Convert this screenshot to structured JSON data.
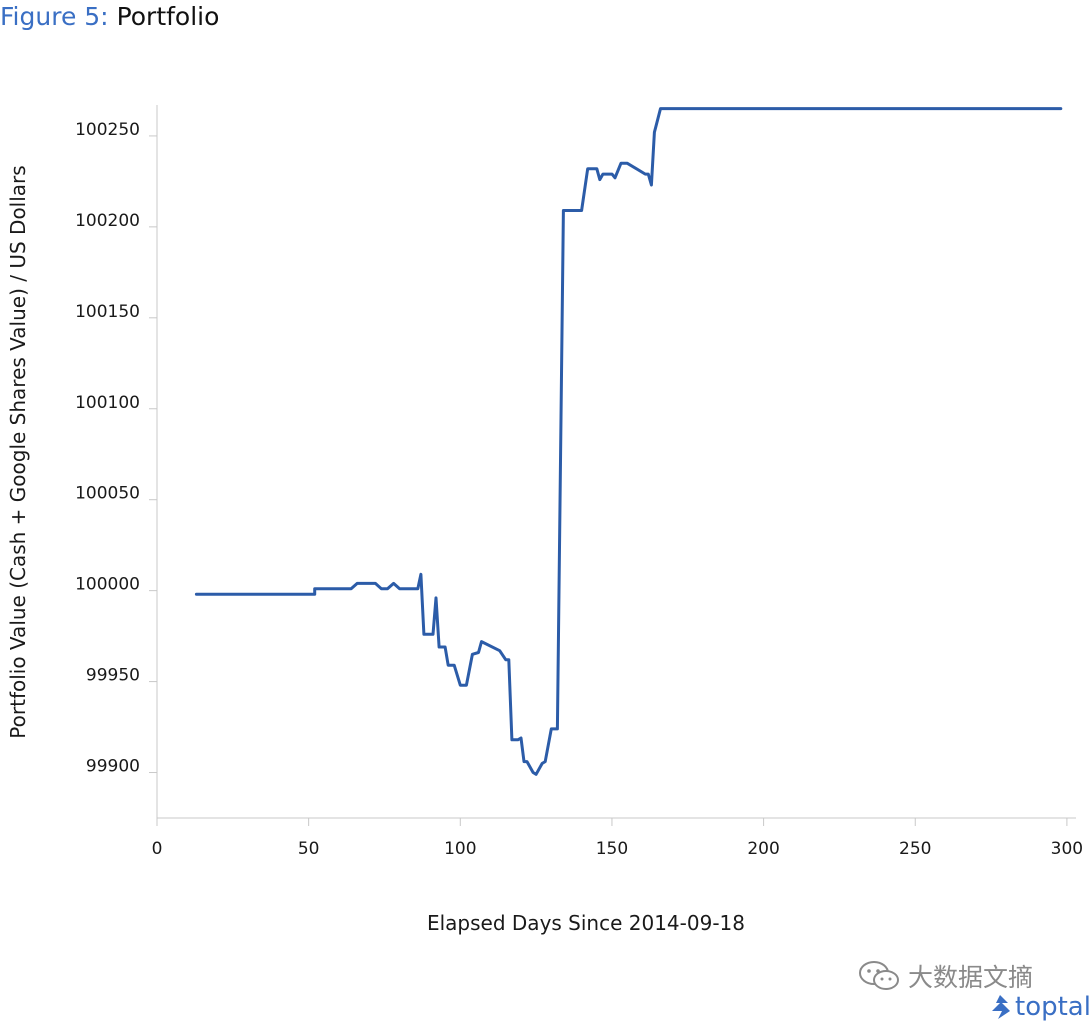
{
  "figure": {
    "label": "Figure 5:",
    "name": "Portfolio"
  },
  "watermark": {
    "icon": "wechat-icon",
    "text": "大数据文摘"
  },
  "brand": {
    "icon": "toptal-logo-icon",
    "text": "toptal"
  },
  "colors": {
    "line": "#2c5ca8",
    "axis": "#c8c8c8",
    "title_accent": "#3a6fc4"
  },
  "chart_data": {
    "type": "line",
    "title": "Portfolio",
    "xlabel": "Elapsed Days Since 2014-09-18",
    "ylabel": "Portfolio Value (Cash + Google Shares Value) / US Dollars",
    "xlim": [
      0,
      303
    ],
    "ylim": [
      99875,
      100267
    ],
    "xticks": [
      0,
      50,
      100,
      150,
      200,
      250,
      300
    ],
    "yticks": [
      99900,
      99950,
      100000,
      100050,
      100100,
      100150,
      100200,
      100250
    ],
    "grid": false,
    "legend": "none",
    "series": [
      {
        "x": [
          13,
          52,
          52,
          64,
          66,
          72,
          74,
          76,
          78,
          80,
          86,
          87,
          88,
          89,
          91,
          92,
          93,
          95,
          96,
          98,
          100,
          102,
          104,
          106,
          107,
          113,
          115,
          116,
          117,
          119,
          120,
          121,
          122,
          124,
          125,
          127,
          128,
          130,
          131,
          132,
          134,
          140,
          142,
          145,
          146,
          147,
          150,
          151,
          153,
          155,
          161,
          162,
          163,
          164,
          166,
          168,
          298
        ],
        "y": [
          99998,
          99998,
          100001,
          100001,
          100004,
          100004,
          100001,
          100001,
          100004,
          100001,
          100001,
          100009,
          99976,
          99976,
          99976,
          99996,
          99969,
          99969,
          99959,
          99959,
          99948,
          99948,
          99965,
          99966,
          99972,
          99967,
          99962,
          99962,
          99918,
          99918,
          99919,
          99906,
          99906,
          99900,
          99899,
          99905,
          99906,
          99924,
          99924,
          99924,
          100209,
          100209,
          100232,
          100232,
          100226,
          100229,
          100229,
          100227,
          100235,
          100235,
          100229,
          100229,
          100223,
          100252,
          100265,
          100265,
          100265
        ]
      }
    ]
  }
}
